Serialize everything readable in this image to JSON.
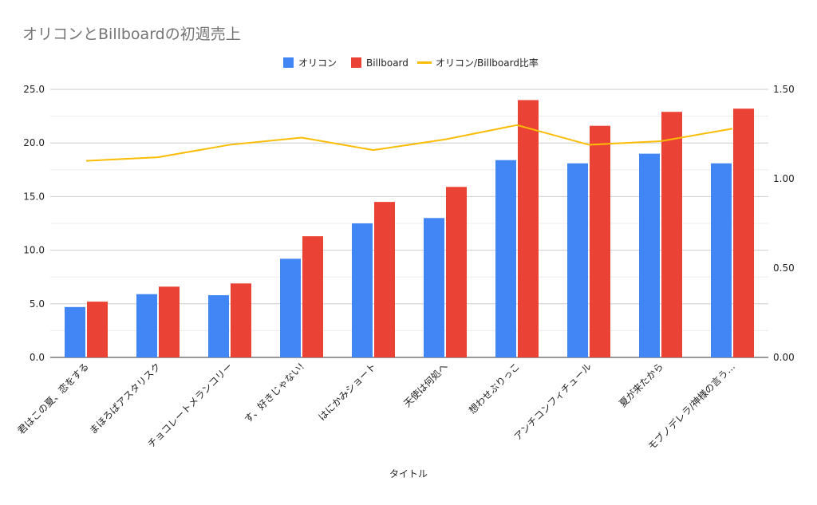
{
  "chart_data": {
    "type": "bar",
    "title": "オリコンとBillboardの初週売上",
    "xlabel": "タイトル",
    "ylabel": "",
    "ylim": [
      0,
      25
    ],
    "y2lim": [
      0,
      1.5
    ],
    "yticks": [
      "0.0",
      "5.0",
      "10.0",
      "15.0",
      "20.0",
      "25.0"
    ],
    "y2ticks": [
      "0.00",
      "0.50",
      "1.00",
      "1.50"
    ],
    "grid": true,
    "legend_position": "top-center",
    "categories": [
      "君はこの夏、恋をする",
      "まほろばアスタリスク",
      "チョコレートメランコリー",
      "す、好きじゃない!",
      "はにかみショート",
      "天使は何処へ",
      "想わせぶりっこ",
      "アンチコンフィチュール",
      "夏が来たから",
      "モブノデレラ/神様の言う…"
    ],
    "series": [
      {
        "name": "オリコン",
        "type": "bar",
        "axis": "left",
        "color": "#4285f4",
        "values": [
          4.7,
          5.9,
          5.8,
          9.2,
          12.5,
          13.0,
          18.4,
          18.1,
          19.0,
          18.1
        ]
      },
      {
        "name": "Billboard",
        "type": "bar",
        "axis": "left",
        "color": "#ea4335",
        "values": [
          5.2,
          6.6,
          6.9,
          11.3,
          14.5,
          15.9,
          24.0,
          21.6,
          22.9,
          23.2
        ]
      },
      {
        "name": "オリコン/Billboard比率",
        "type": "line",
        "axis": "right",
        "color": "#fbbc04",
        "values": [
          1.1,
          1.12,
          1.19,
          1.23,
          1.16,
          1.22,
          1.3,
          1.19,
          1.21,
          1.28
        ]
      }
    ]
  }
}
